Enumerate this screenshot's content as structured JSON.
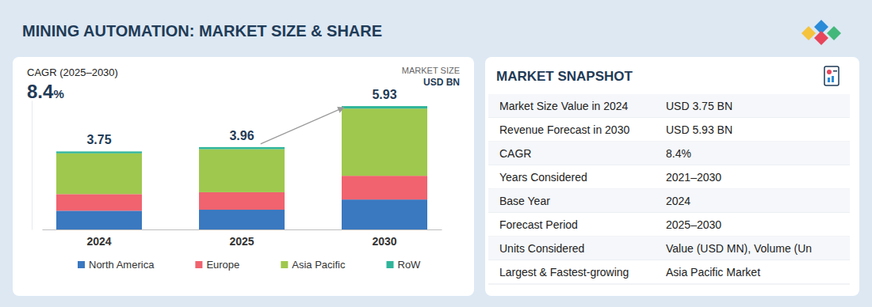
{
  "header": {
    "title": "MINING AUTOMATION: MARKET SIZE & SHARE"
  },
  "chart_data": {
    "type": "bar",
    "stacked": true,
    "categories": [
      "2024",
      "2025",
      "2030"
    ],
    "series": [
      {
        "name": "North America",
        "color": "#3a78c0",
        "values": [
          0.9,
          0.95,
          1.44
        ]
      },
      {
        "name": "Europe",
        "color": "#f0636f",
        "values": [
          0.8,
          0.84,
          1.14
        ]
      },
      {
        "name": "Asia Pacific",
        "color": "#9fc84e",
        "values": [
          1.96,
          2.07,
          3.23
        ]
      },
      {
        "name": "RoW",
        "color": "#2fb59a",
        "values": [
          0.09,
          0.1,
          0.12
        ]
      }
    ],
    "totals": [
      3.75,
      3.96,
      5.93
    ],
    "ylim": [
      0,
      6.2
    ],
    "ylabel": [
      "MARKET SIZE",
      "USD BN"
    ],
    "annotations": [
      "CAGR (2025–2030)",
      "8.4%"
    ],
    "legend": "bottom",
    "tick_labels": "x"
  },
  "snapshot": {
    "title": "MARKET SNAPSHOT",
    "rows": [
      [
        "Market Size Value in 2024",
        "USD 3.75 BN"
      ],
      [
        "Revenue Forecast in 2030",
        "USD 5.93 BN"
      ],
      [
        "CAGR",
        "8.4%"
      ],
      [
        "Years Considered",
        "2021–2030"
      ],
      [
        "Base Year",
        "2024"
      ],
      [
        "Forecast Period",
        "2025–2030"
      ],
      [
        "Units Considered",
        "Value (USD MN), Volume (Un"
      ],
      [
        "Largest & Fastest-growing",
        "Asia Pacific Market"
      ]
    ]
  }
}
